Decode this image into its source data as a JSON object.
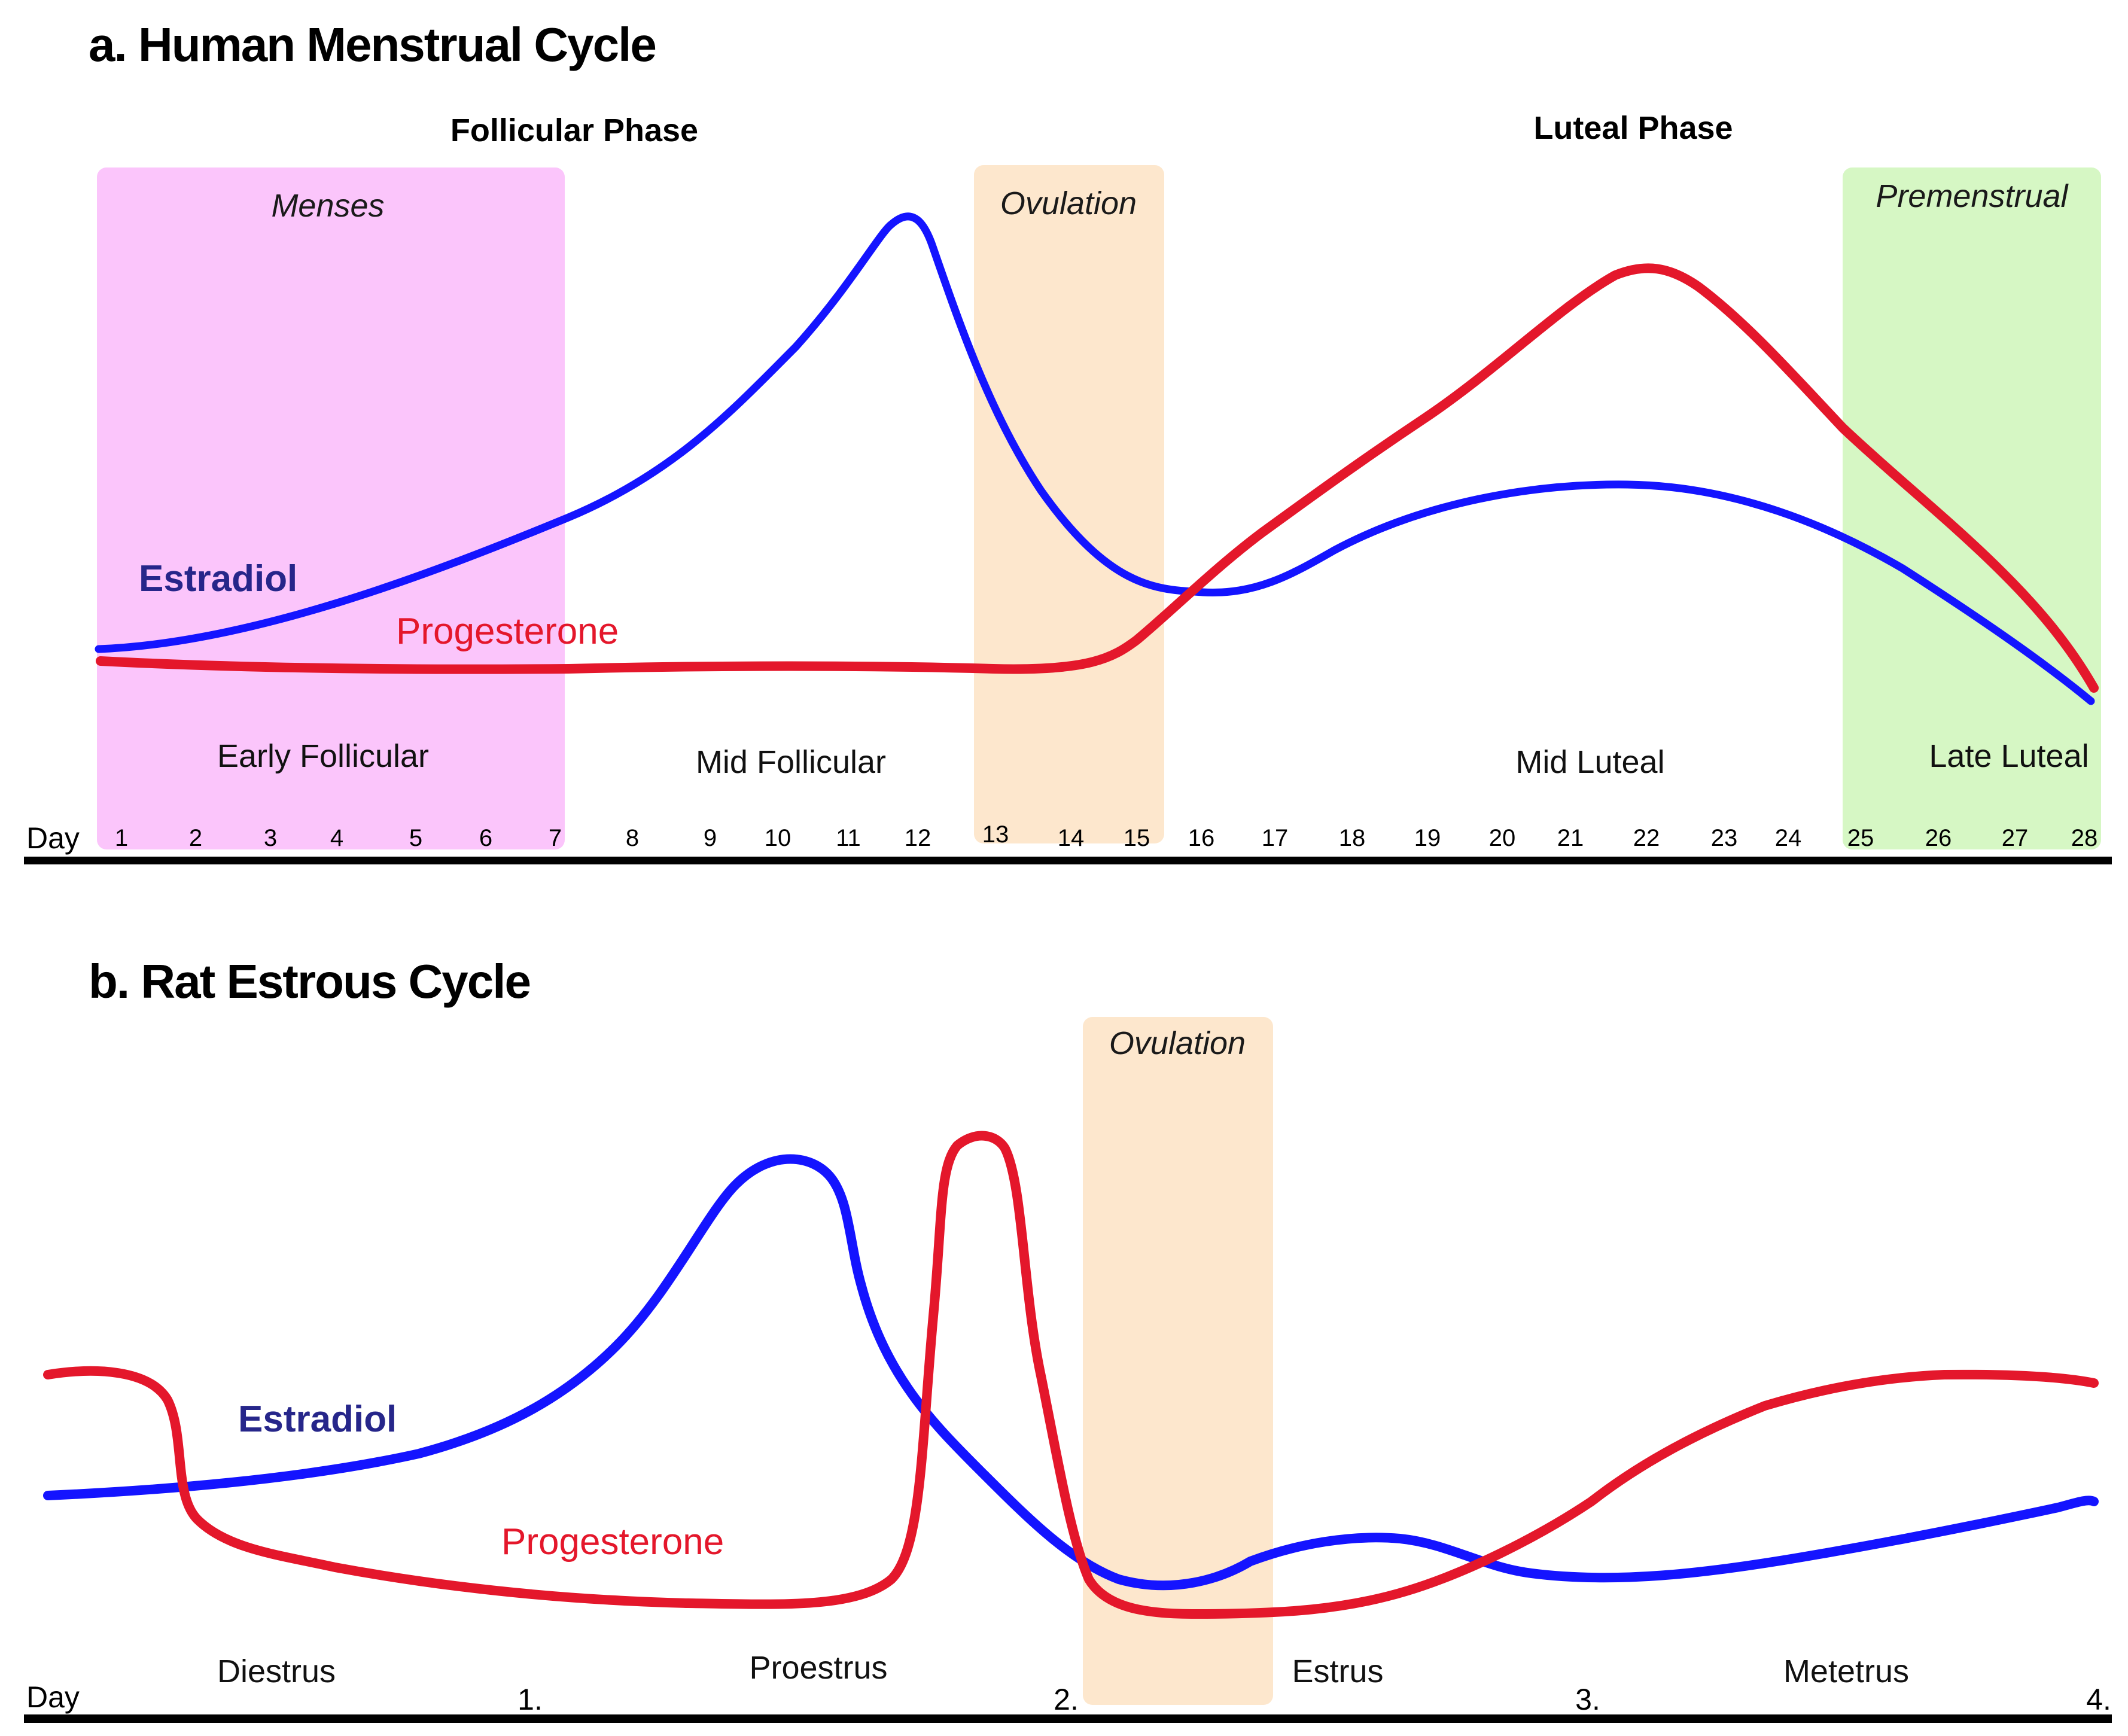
{
  "colors": {
    "estradiol_line": "#1414ff",
    "estradiol_label": "#26268a",
    "progesterone": "#e4172b",
    "menses_band": "#fbc5fb",
    "ovulation_band": "#fde7cd",
    "premenstrual_band": "#d6f7c4",
    "axis": "#000000"
  },
  "panel_a": {
    "title": "a. Human Menstrual Cycle",
    "phase_follicular": "Follicular Phase",
    "phase_luteal": "Luteal Phase",
    "band_menses": "Menses",
    "band_ovulation": "Ovulation",
    "band_premenstrual": "Premenstrual",
    "sub_early_follicular": "Early Follicular",
    "sub_mid_follicular": "Mid Follicular",
    "sub_mid_luteal": "Mid Luteal",
    "sub_late_luteal": "Late Luteal",
    "label_estradiol": "Estradiol",
    "label_progesterone": "Progesterone",
    "day_word": "Day",
    "days": [
      "1",
      "2",
      "3",
      "4",
      "5",
      "6",
      "7",
      "8",
      "9",
      "10",
      "11",
      "12",
      "13",
      "14",
      "15",
      "16",
      "17",
      "18",
      "19",
      "20",
      "21",
      "22",
      "23",
      "24",
      "25",
      "26",
      "27",
      "28"
    ]
  },
  "panel_b": {
    "title": "b. Rat Estrous Cycle",
    "band_ovulation": "Ovulation",
    "label_estradiol": "Estradiol",
    "label_progesterone": "Progesterone",
    "day_word": "Day",
    "stage_diestrus": "Diestrus",
    "stage_proestrus": "Proestrus",
    "stage_estrus": "Estrus",
    "stage_metetrus": "Metetrus",
    "tick_1": "1.",
    "tick_2": "2.",
    "tick_3": "3.",
    "tick_4": "4."
  }
}
